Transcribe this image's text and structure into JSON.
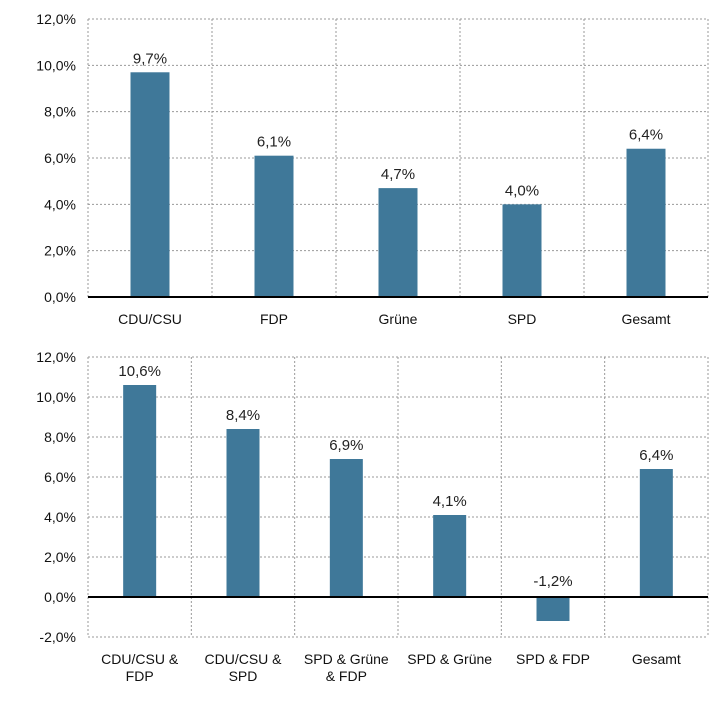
{
  "bar_color": "#3f7899",
  "chart_data": [
    {
      "type": "bar",
      "categories": [
        [
          "CDU/CSU"
        ],
        [
          "FDP"
        ],
        [
          "Grüne"
        ],
        [
          "SPD"
        ],
        [
          "Gesamt"
        ]
      ],
      "values": [
        9.7,
        6.1,
        4.7,
        4.0,
        6.4
      ],
      "value_labels": [
        "9,7%",
        "6,1%",
        "4,7%",
        "4,0%",
        "6,4%"
      ],
      "ylim": [
        0,
        12
      ],
      "yticks": [
        0,
        2,
        4,
        6,
        8,
        10,
        12
      ],
      "ytick_labels": [
        "0,0%",
        "2,0%",
        "4,0%",
        "6,0%",
        "8,0%",
        "10,0%",
        "12,0%"
      ],
      "grid": true
    },
    {
      "type": "bar",
      "categories": [
        [
          "CDU/CSU &",
          "FDP"
        ],
        [
          "CDU/CSU &",
          "SPD"
        ],
        [
          "SPD & Grüne",
          "& FDP"
        ],
        [
          "SPD & Grüne"
        ],
        [
          "SPD & FDP"
        ],
        [
          "Gesamt"
        ]
      ],
      "values": [
        10.6,
        8.4,
        6.9,
        4.1,
        -1.2,
        6.4
      ],
      "value_labels": [
        "10,6%",
        "8,4%",
        "6,9%",
        "4,1%",
        "-1,2%",
        "6,4%"
      ],
      "ylim": [
        -2,
        12
      ],
      "yticks": [
        -2,
        0,
        2,
        4,
        6,
        8,
        10,
        12
      ],
      "ytick_labels": [
        "-2,0%",
        "0,0%",
        "2,0%",
        "4,0%",
        "6,0%",
        "8,0%",
        "10,0%",
        "12,0%"
      ],
      "grid": true
    }
  ]
}
